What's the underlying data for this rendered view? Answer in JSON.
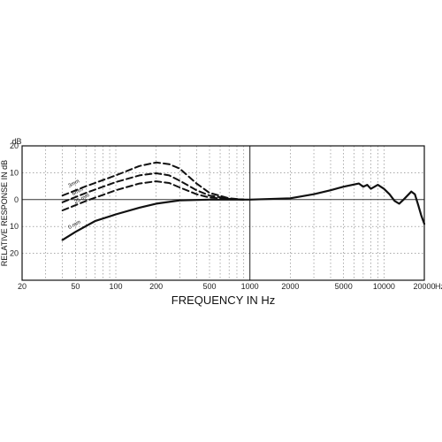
{
  "chart_data": {
    "type": "line",
    "title": "",
    "xlabel": "FREQUENCY IN Hz",
    "ylabel": "RELATIVE RESPONSE IN dB",
    "x_scale": "log",
    "xlim": [
      20,
      20000
    ],
    "ylim": [
      -30,
      20
    ],
    "y_unit": "dB",
    "x_unit": "Hz",
    "grid": true,
    "x_ticks": [
      20,
      50,
      100,
      200,
      500,
      1000,
      2000,
      5000,
      10000,
      20000
    ],
    "x_tick_labels": [
      "20",
      "50",
      "100",
      "200",
      "500",
      "1000",
      "2000",
      "5000",
      "10000",
      "20000"
    ],
    "y_ticks": [
      20,
      10,
      0,
      -10,
      -20
    ],
    "y_tick_labels": [
      "20",
      "10",
      "0",
      "10",
      "20"
    ],
    "series": [
      {
        "name": "0 mm",
        "style": "solid",
        "points": [
          [
            40,
            -15
          ],
          [
            50,
            -12
          ],
          [
            70,
            -8
          ],
          [
            100,
            -5.5
          ],
          [
            150,
            -3
          ],
          [
            200,
            -1.5
          ],
          [
            300,
            -0.3
          ],
          [
            500,
            0
          ],
          [
            1000,
            0
          ],
          [
            2000,
            0.5
          ],
          [
            3000,
            2
          ],
          [
            4000,
            3.5
          ],
          [
            5000,
            4.8
          ],
          [
            6500,
            6
          ],
          [
            7000,
            4.8
          ],
          [
            7500,
            5.5
          ],
          [
            8000,
            4
          ],
          [
            9000,
            5.5
          ],
          [
            10000,
            4
          ],
          [
            11000,
            2
          ],
          [
            12000,
            -0.5
          ],
          [
            13000,
            -1.5
          ],
          [
            14000,
            0
          ],
          [
            16000,
            3
          ],
          [
            17000,
            2
          ],
          [
            18000,
            -2
          ],
          [
            19000,
            -6
          ],
          [
            20000,
            -9
          ]
        ]
      },
      {
        "name": "25 mm",
        "style": "dashed",
        "points": [
          [
            40,
            -4
          ],
          [
            60,
            -0.5
          ],
          [
            100,
            3.5
          ],
          [
            150,
            6
          ],
          [
            200,
            6.8
          ],
          [
            250,
            6.2
          ],
          [
            300,
            4.5
          ],
          [
            400,
            2
          ],
          [
            500,
            0.8
          ],
          [
            700,
            0.2
          ],
          [
            900,
            0
          ]
        ]
      },
      {
        "name": "6mm",
        "style": "dashed",
        "points": [
          [
            40,
            -1
          ],
          [
            60,
            2.5
          ],
          [
            100,
            6.5
          ],
          [
            150,
            9
          ],
          [
            200,
            9.8
          ],
          [
            250,
            9
          ],
          [
            300,
            7
          ],
          [
            400,
            3.5
          ],
          [
            500,
            1.5
          ],
          [
            700,
            0.3
          ],
          [
            900,
            0
          ]
        ]
      },
      {
        "name": "3mm",
        "style": "dashed",
        "points": [
          [
            40,
            1.5
          ],
          [
            60,
            5
          ],
          [
            100,
            9
          ],
          [
            150,
            12.5
          ],
          [
            200,
            13.8
          ],
          [
            250,
            13.2
          ],
          [
            300,
            11.5
          ],
          [
            400,
            6
          ],
          [
            500,
            2.5
          ],
          [
            700,
            0.5
          ],
          [
            900,
            0
          ]
        ]
      }
    ],
    "annotations": [
      "3mm",
      "6mm",
      "25 mm",
      "0 mm"
    ]
  }
}
